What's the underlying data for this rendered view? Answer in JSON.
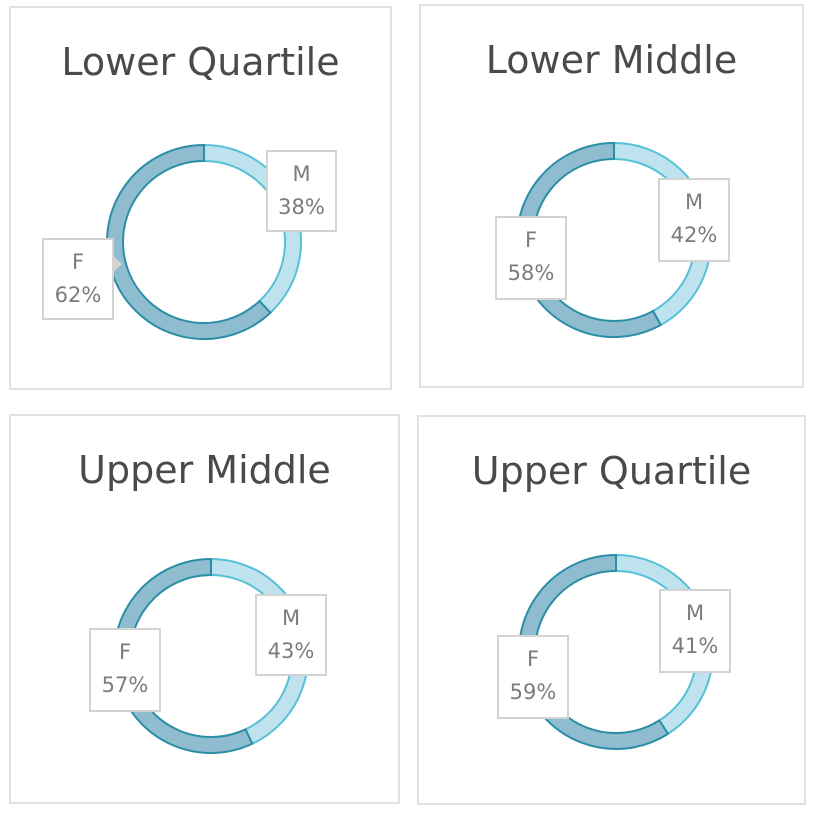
{
  "colors": {
    "female_fill": "#8fbccf",
    "female_stroke": "#2b8ea6",
    "male_fill": "#bfe3ee",
    "male_stroke": "#56c0d9",
    "label_border": "#d3d3d3",
    "label_text": "#7c7c7c",
    "title_text": "#4a4a4a"
  },
  "chart_data": [
    {
      "type": "pie",
      "title": "Lower Quartile",
      "series": [
        {
          "name": "M",
          "value": 38,
          "label": "38%"
        },
        {
          "name": "F",
          "value": 62,
          "label": "62%"
        }
      ]
    },
    {
      "type": "pie",
      "title": "Lower Middle",
      "series": [
        {
          "name": "M",
          "value": 42,
          "label": "42%"
        },
        {
          "name": "F",
          "value": 58,
          "label": "58%"
        }
      ]
    },
    {
      "type": "pie",
      "title": "Upper Middle",
      "series": [
        {
          "name": "M",
          "value": 43,
          "label": "43%"
        },
        {
          "name": "F",
          "value": 57,
          "label": "57%"
        }
      ]
    },
    {
      "type": "pie",
      "title": "Upper Quartile",
      "series": [
        {
          "name": "M",
          "value": 41,
          "label": "41%"
        },
        {
          "name": "F",
          "value": 59,
          "label": "59%"
        }
      ]
    }
  ]
}
